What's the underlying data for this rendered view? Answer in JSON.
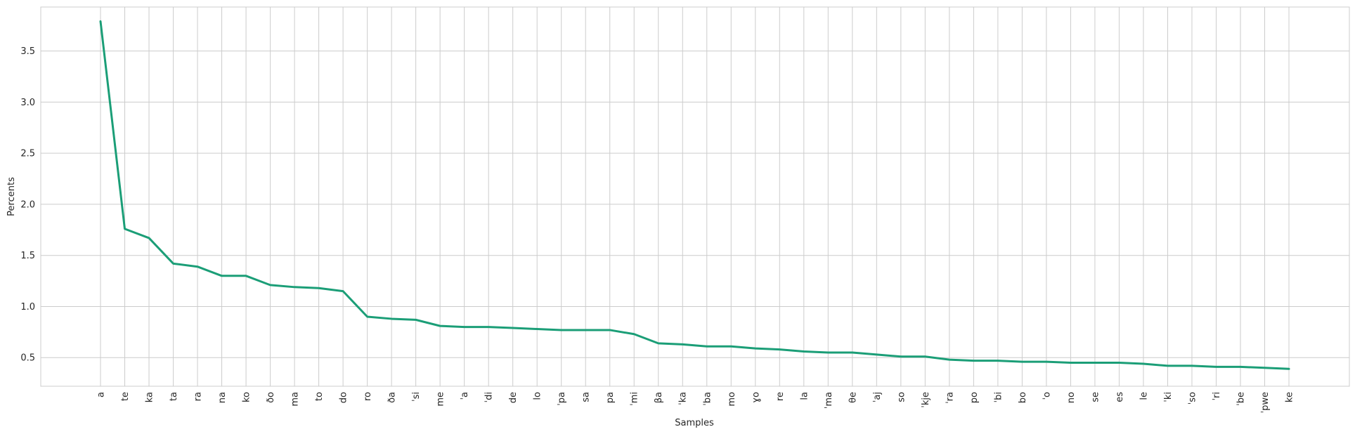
{
  "chart_data": {
    "type": "line",
    "title": "",
    "xlabel": "Samples",
    "ylabel": "Percents",
    "categories": [
      "a",
      "te",
      "ka",
      "ta",
      "ra",
      "na",
      "ko",
      "ðo",
      "ma",
      "to",
      "do",
      "ro",
      "ða",
      "ˈsi",
      "me",
      "ˈa",
      "ˈdi",
      "de",
      "lo",
      "ˈpa",
      "sa",
      "pa",
      "ˈmi",
      "βa",
      "ˈka",
      "ˈba",
      "mo",
      "ɣo",
      "re",
      "la",
      "ˈma",
      "θe",
      "ˈaj",
      "so",
      "ˈkje",
      "ˈra",
      "po",
      "ˈbi",
      "bo",
      "ˈo",
      "no",
      "se",
      "es",
      "le",
      "ˈki",
      "ˈso",
      "ˈri",
      "ˈbe",
      "ˈpwe",
      "ke"
    ],
    "series": [
      {
        "values": [
          3.79,
          1.76,
          1.67,
          1.42,
          1.39,
          1.3,
          1.3,
          1.21,
          1.19,
          1.18,
          1.15,
          0.9,
          0.88,
          0.87,
          0.81,
          0.8,
          0.8,
          0.79,
          0.78,
          0.77,
          0.77,
          0.77,
          0.73,
          0.64,
          0.63,
          0.61,
          0.61,
          0.59,
          0.58,
          0.56,
          0.55,
          0.55,
          0.53,
          0.51,
          0.51,
          0.48,
          0.47,
          0.47,
          0.46,
          0.46,
          0.45,
          0.45,
          0.45,
          0.44,
          0.42,
          0.42,
          0.41,
          0.41,
          0.4,
          0.39
        ],
        "color": "#1b9e77"
      }
    ],
    "ylim": [
      0.22,
      3.93
    ],
    "yticks": [
      0.5,
      1.0,
      1.5,
      2.0,
      2.5,
      3.0,
      3.5
    ],
    "ytick_labels": [
      "0.5",
      "1.0",
      "1.5",
      "2.0",
      "2.5",
      "3.0",
      "3.5"
    ],
    "grid": true,
    "grid_color": "#cccccc"
  }
}
